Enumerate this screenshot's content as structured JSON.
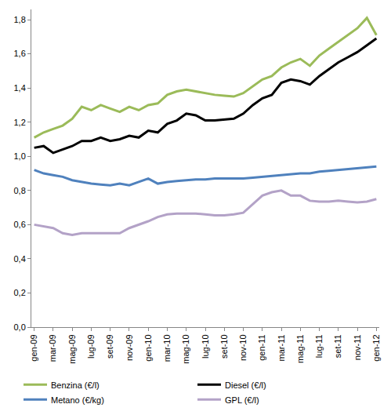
{
  "chart_data": {
    "type": "line",
    "categories": [
      "gen-09",
      null,
      "mar-09",
      null,
      "mag-09",
      null,
      "lug-09",
      null,
      "set-09",
      null,
      "nov-09",
      null,
      "gen-10",
      null,
      "mar-10",
      null,
      "mag-10",
      null,
      "lug-10",
      null,
      "set-10",
      null,
      "nov-10",
      null,
      "gen-11",
      null,
      "mar-11",
      null,
      "mag-11",
      null,
      "lug-11",
      null,
      "set-11",
      null,
      "nov-11",
      null,
      "gen-12"
    ],
    "series": [
      {
        "name": "Benzina (€/l)",
        "color": "#9bbb59",
        "values": [
          1.11,
          1.14,
          1.16,
          1.18,
          1.22,
          1.29,
          1.27,
          1.3,
          1.28,
          1.26,
          1.29,
          1.27,
          1.3,
          1.31,
          1.36,
          1.38,
          1.39,
          1.38,
          1.37,
          1.36,
          1.355,
          1.35,
          1.37,
          1.41,
          1.45,
          1.47,
          1.52,
          1.55,
          1.57,
          1.53,
          1.59,
          1.63,
          1.67,
          1.71,
          1.75,
          1.81,
          1.71
        ]
      },
      {
        "name": "Diesel (€/l)",
        "color": "#000000",
        "values": [
          1.05,
          1.06,
          1.02,
          1.04,
          1.06,
          1.09,
          1.09,
          1.11,
          1.09,
          1.1,
          1.12,
          1.11,
          1.15,
          1.14,
          1.19,
          1.21,
          1.25,
          1.24,
          1.21,
          1.21,
          1.215,
          1.22,
          1.25,
          1.3,
          1.34,
          1.36,
          1.43,
          1.45,
          1.44,
          1.42,
          1.47,
          1.51,
          1.55,
          1.58,
          1.61,
          1.65,
          1.69
        ]
      },
      {
        "name": "Metano (€/kg)",
        "color": "#4f81bd",
        "values": [
          0.92,
          0.9,
          0.89,
          0.88,
          0.86,
          0.85,
          0.84,
          0.835,
          0.83,
          0.84,
          0.83,
          0.85,
          0.87,
          0.84,
          0.85,
          0.855,
          0.86,
          0.865,
          0.865,
          0.87,
          0.87,
          0.87,
          0.87,
          0.875,
          0.88,
          0.885,
          0.89,
          0.895,
          0.9,
          0.9,
          0.91,
          0.915,
          0.92,
          0.925,
          0.93,
          0.935,
          0.94
        ]
      },
      {
        "name": "GPL (€/l)",
        "color": "#b3a2c7",
        "values": [
          0.6,
          0.59,
          0.58,
          0.55,
          0.54,
          0.55,
          0.55,
          0.55,
          0.55,
          0.55,
          0.58,
          0.6,
          0.62,
          0.645,
          0.66,
          0.665,
          0.665,
          0.665,
          0.66,
          0.655,
          0.655,
          0.66,
          0.67,
          0.72,
          0.77,
          0.79,
          0.8,
          0.77,
          0.77,
          0.74,
          0.735,
          0.735,
          0.74,
          0.735,
          0.73,
          0.735,
          0.75
        ]
      }
    ],
    "ylim": [
      0,
      1.86
    ],
    "yticks": [
      {
        "value": 0,
        "label": "0,0"
      },
      {
        "value": 0.2,
        "label": "0,2"
      },
      {
        "value": 0.4,
        "label": "0,4"
      },
      {
        "value": 0.6,
        "label": "0,6"
      },
      {
        "value": 0.8,
        "label": "0,8"
      },
      {
        "value": 1.0,
        "label": "1,0"
      },
      {
        "value": 1.2,
        "label": "1,2"
      },
      {
        "value": 1.4,
        "label": "1,4"
      },
      {
        "value": 1.6,
        "label": "1,6"
      },
      {
        "value": 1.8,
        "label": "1,8"
      }
    ],
    "grid": false,
    "legend": "bottom"
  }
}
